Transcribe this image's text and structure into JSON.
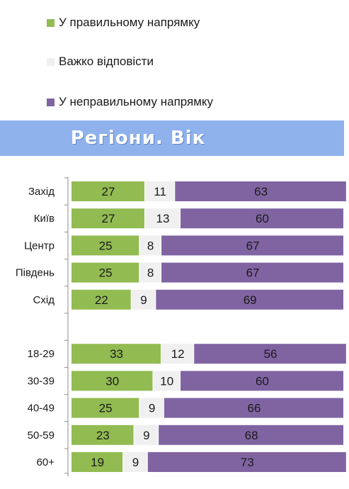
{
  "banner": {
    "title": "Регіони. Вік"
  },
  "legend": [
    {
      "label": "У правильному напрямку",
      "color": "#92bb52"
    },
    {
      "label": "Важко відповісти",
      "color": "#f0f0f0"
    },
    {
      "label": "У неправильному напрямку",
      "color": "#8064a2"
    }
  ],
  "chart_data": {
    "type": "bar",
    "orientation": "horizontal",
    "stacked": true,
    "xlim": [
      0,
      100
    ],
    "grid": false,
    "legend_position": "top-left",
    "categories": [
      "Захід",
      "Київ",
      "Центр",
      "Південь",
      "Схід",
      "",
      "18-29",
      "30-39",
      "40-49",
      "50-59",
      "60+"
    ],
    "series": [
      {
        "name": "У правильному напрямку",
        "color": "#92bb52",
        "values": [
          27,
          27,
          25,
          25,
          22,
          null,
          33,
          30,
          25,
          23,
          19
        ]
      },
      {
        "name": "Важко відповісти",
        "color": "#f0f0f0",
        "values": [
          11,
          13,
          8,
          8,
          9,
          null,
          12,
          10,
          9,
          9,
          9
        ]
      },
      {
        "name": "У неправильному напрямку",
        "color": "#8064a2",
        "values": [
          63,
          60,
          67,
          67,
          69,
          null,
          56,
          60,
          66,
          68,
          73
        ]
      }
    ]
  }
}
